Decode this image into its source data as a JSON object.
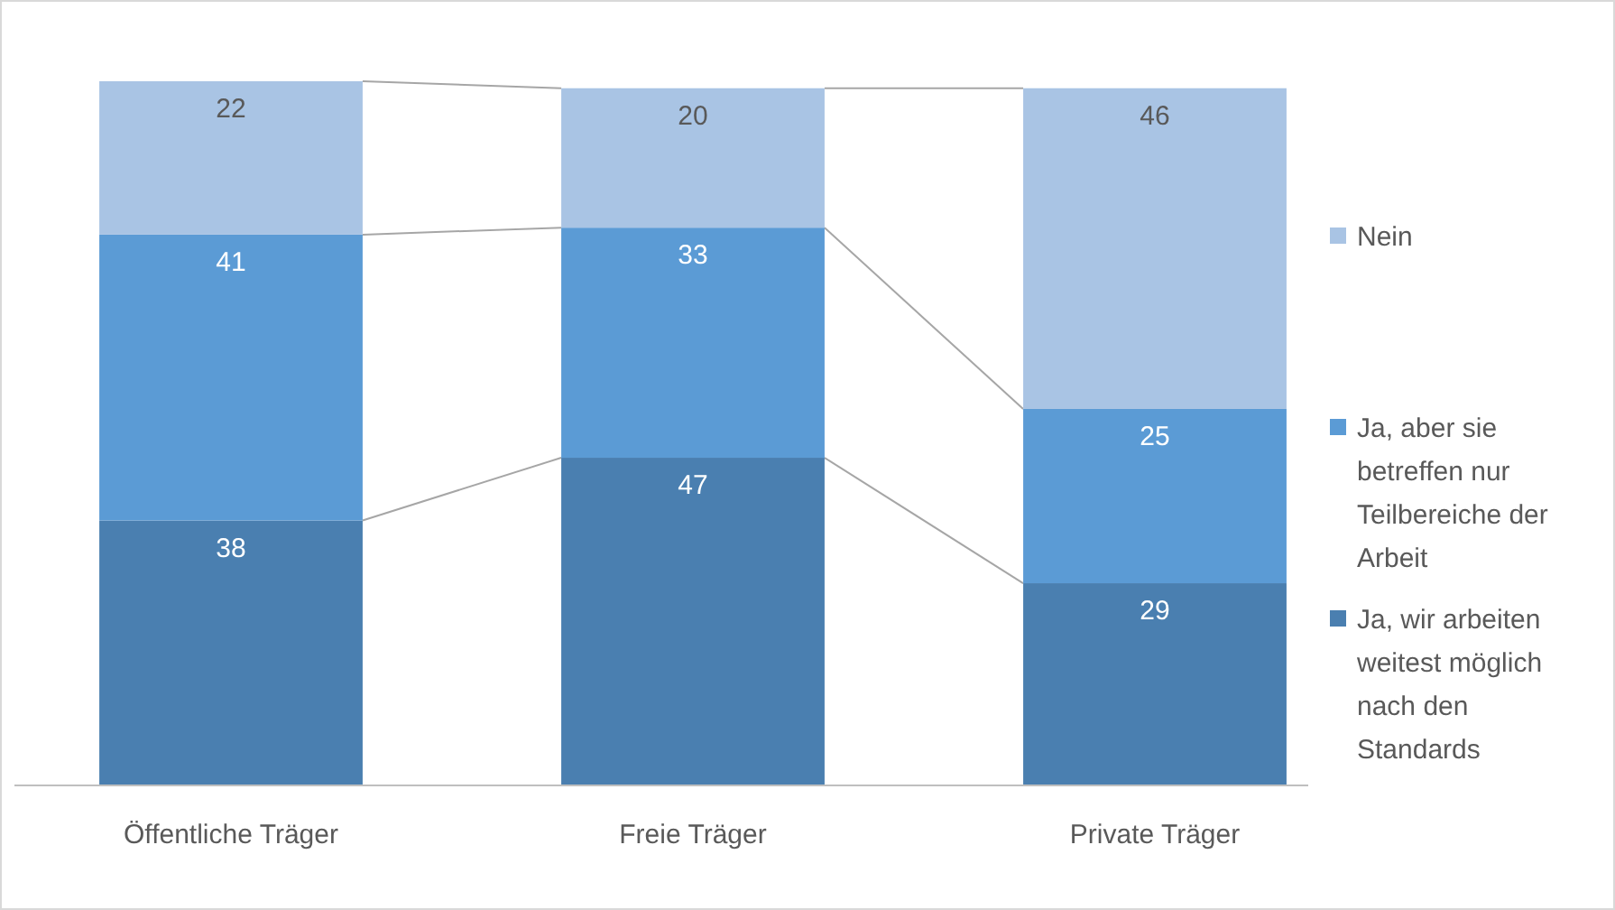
{
  "chart_data": {
    "type": "bar",
    "stacked": true,
    "categories": [
      "Öffentliche Träger",
      "Freie Träger",
      "Private Träger"
    ],
    "series": [
      {
        "name": "Ja, wir arbeiten weitest möglich nach den Standards",
        "color": "#4a7fb0",
        "values": [
          38,
          47,
          29
        ]
      },
      {
        "name": "Ja, aber sie betreffen nur Teilbereiche der Arbeit",
        "color": "#5b9bd5",
        "values": [
          41,
          33,
          25
        ]
      },
      {
        "name": "Nein",
        "color": "#a9c4e4",
        "values": [
          22,
          20,
          46
        ]
      }
    ],
    "data_labels": true,
    "legend": "right",
    "grid": false
  }
}
